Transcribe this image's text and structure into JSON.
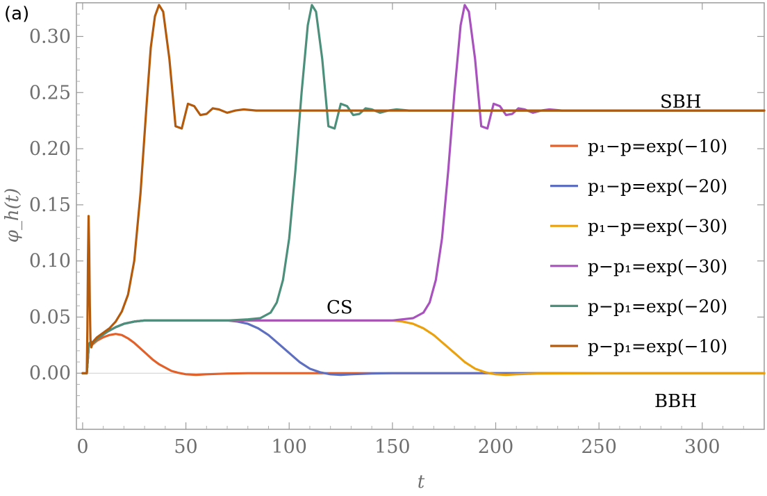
{
  "chart_data": {
    "type": "line",
    "panel_label": "(a)",
    "xlabel": "t",
    "ylabel": "φ_h(t)",
    "xlim": [
      -3,
      330
    ],
    "ylim": [
      -0.05,
      0.33
    ],
    "xticks": [
      0,
      50,
      100,
      150,
      200,
      250,
      300
    ],
    "xtick_labels": [
      "0",
      "50",
      "100",
      "150",
      "200",
      "250",
      "300"
    ],
    "yticks": [
      0.0,
      0.05,
      0.1,
      0.15,
      0.2,
      0.25,
      0.3
    ],
    "ytick_labels": [
      "0.00",
      "0.05",
      "0.10",
      "0.15",
      "0.20",
      "0.25",
      "0.30"
    ],
    "grid": false,
    "legend_position": "right",
    "annotations": [
      "SBH",
      "CS",
      "BBH"
    ],
    "series": [
      {
        "name": "p₁−p=exp(−10)",
        "color": "#e2612a",
        "x": [
          0,
          1,
          2,
          2.5,
          3,
          4,
          5,
          7,
          10,
          13,
          16,
          19,
          22,
          25,
          28,
          31,
          34,
          37,
          40,
          43,
          46,
          50,
          55,
          60,
          70,
          80,
          100,
          150,
          200,
          250,
          330
        ],
        "y": [
          0,
          0,
          0,
          0.012,
          0.026,
          0.028,
          0.026,
          0.029,
          0.032,
          0.034,
          0.035,
          0.034,
          0.031,
          0.027,
          0.022,
          0.017,
          0.012,
          0.008,
          0.005,
          0.002,
          0.0005,
          -0.001,
          -0.0015,
          -0.001,
          -0.0003,
          0,
          0,
          0,
          0,
          0,
          0
        ]
      },
      {
        "name": "p₁−p=exp(−20)",
        "color": "#5e6fc0",
        "x": [
          0,
          1,
          2,
          2.5,
          3,
          4,
          5,
          8,
          12,
          16,
          20,
          25,
          30,
          40,
          50,
          60,
          70,
          75,
          80,
          85,
          90,
          95,
          100,
          105,
          110,
          115,
          120,
          125,
          130,
          140,
          150,
          200,
          250,
          330
        ],
        "y": [
          0,
          0,
          0,
          0.012,
          0.026,
          0.028,
          0.027,
          0.032,
          0.037,
          0.041,
          0.044,
          0.046,
          0.047,
          0.047,
          0.047,
          0.047,
          0.047,
          0.046,
          0.044,
          0.04,
          0.034,
          0.026,
          0.018,
          0.01,
          0.004,
          0.0008,
          -0.001,
          -0.0015,
          -0.001,
          -0.0003,
          0,
          0,
          0,
          0
        ]
      },
      {
        "name": "p₁−p=exp(−30)",
        "color": "#eba10d",
        "x": [
          0,
          1,
          2,
          2.5,
          3,
          4,
          5,
          8,
          12,
          16,
          20,
          25,
          30,
          40,
          50,
          100,
          140,
          150,
          155,
          160,
          165,
          170,
          175,
          180,
          185,
          190,
          195,
          200,
          205,
          210,
          220,
          250,
          330
        ],
        "y": [
          0,
          0,
          0,
          0.012,
          0.026,
          0.028,
          0.027,
          0.032,
          0.037,
          0.041,
          0.044,
          0.046,
          0.047,
          0.047,
          0.047,
          0.047,
          0.047,
          0.047,
          0.046,
          0.044,
          0.04,
          0.034,
          0.026,
          0.018,
          0.01,
          0.004,
          0.0008,
          -0.001,
          -0.0015,
          -0.001,
          -0.0003,
          0,
          0
        ]
      },
      {
        "name": "p−p₁=exp(−30)",
        "color": "#a852be",
        "x": [
          0,
          1,
          2,
          2.5,
          3,
          4,
          5,
          8,
          12,
          16,
          20,
          25,
          30,
          40,
          50,
          100,
          150,
          160,
          165,
          168,
          171,
          174,
          177,
          180,
          183,
          185,
          187,
          190,
          193,
          196,
          199,
          202,
          205,
          208,
          211,
          214,
          218,
          222,
          226,
          232,
          240,
          260,
          330
        ],
        "y": [
          0,
          0,
          0,
          0.012,
          0.026,
          0.028,
          0.027,
          0.032,
          0.037,
          0.041,
          0.044,
          0.046,
          0.047,
          0.047,
          0.047,
          0.047,
          0.047,
          0.049,
          0.054,
          0.063,
          0.083,
          0.12,
          0.18,
          0.25,
          0.31,
          0.328,
          0.322,
          0.28,
          0.22,
          0.218,
          0.24,
          0.238,
          0.23,
          0.231,
          0.236,
          0.235,
          0.232,
          0.234,
          0.235,
          0.234,
          0.234,
          0.234,
          0.234
        ]
      },
      {
        "name": "p−p₁=exp(−20)",
        "color": "#4c8f7b",
        "x": [
          0,
          1,
          2,
          2.5,
          3,
          4,
          5,
          8,
          12,
          16,
          20,
          25,
          30,
          40,
          50,
          70,
          80,
          86,
          91,
          94,
          97,
          100,
          103,
          106,
          109,
          111,
          113,
          116,
          119,
          122,
          125,
          128,
          131,
          134,
          137,
          140,
          144,
          148,
          152,
          158,
          165,
          180,
          200,
          330
        ],
        "y": [
          0,
          0,
          0,
          0.012,
          0.026,
          0.028,
          0.027,
          0.032,
          0.037,
          0.041,
          0.044,
          0.046,
          0.047,
          0.047,
          0.047,
          0.047,
          0.048,
          0.049,
          0.054,
          0.063,
          0.083,
          0.12,
          0.18,
          0.25,
          0.31,
          0.328,
          0.322,
          0.28,
          0.22,
          0.218,
          0.24,
          0.238,
          0.23,
          0.231,
          0.236,
          0.235,
          0.232,
          0.234,
          0.235,
          0.234,
          0.234,
          0.234,
          0.234,
          0.234
        ]
      },
      {
        "name": "p−p₁=exp(−10)",
        "color": "#b35a0c",
        "x": [
          0,
          1,
          2,
          2.3,
          2.6,
          2.9,
          3.2,
          3.5,
          3.8,
          4.2,
          5,
          7,
          10,
          13,
          16,
          19,
          22,
          25,
          28,
          31,
          33,
          35,
          37,
          39,
          42,
          45,
          48,
          51,
          54,
          57,
          60,
          63,
          66,
          70,
          74,
          78,
          84,
          90,
          100,
          150,
          200,
          330
        ],
        "y": [
          0,
          0,
          0,
          0.04,
          0.1,
          0.14,
          0.11,
          0.06,
          0.03,
          0.023,
          0.028,
          0.032,
          0.036,
          0.04,
          0.046,
          0.055,
          0.07,
          0.1,
          0.16,
          0.24,
          0.29,
          0.318,
          0.328,
          0.322,
          0.28,
          0.22,
          0.218,
          0.24,
          0.238,
          0.23,
          0.231,
          0.236,
          0.235,
          0.232,
          0.234,
          0.235,
          0.234,
          0.234,
          0.234,
          0.234,
          0.234,
          0.234
        ]
      }
    ]
  }
}
